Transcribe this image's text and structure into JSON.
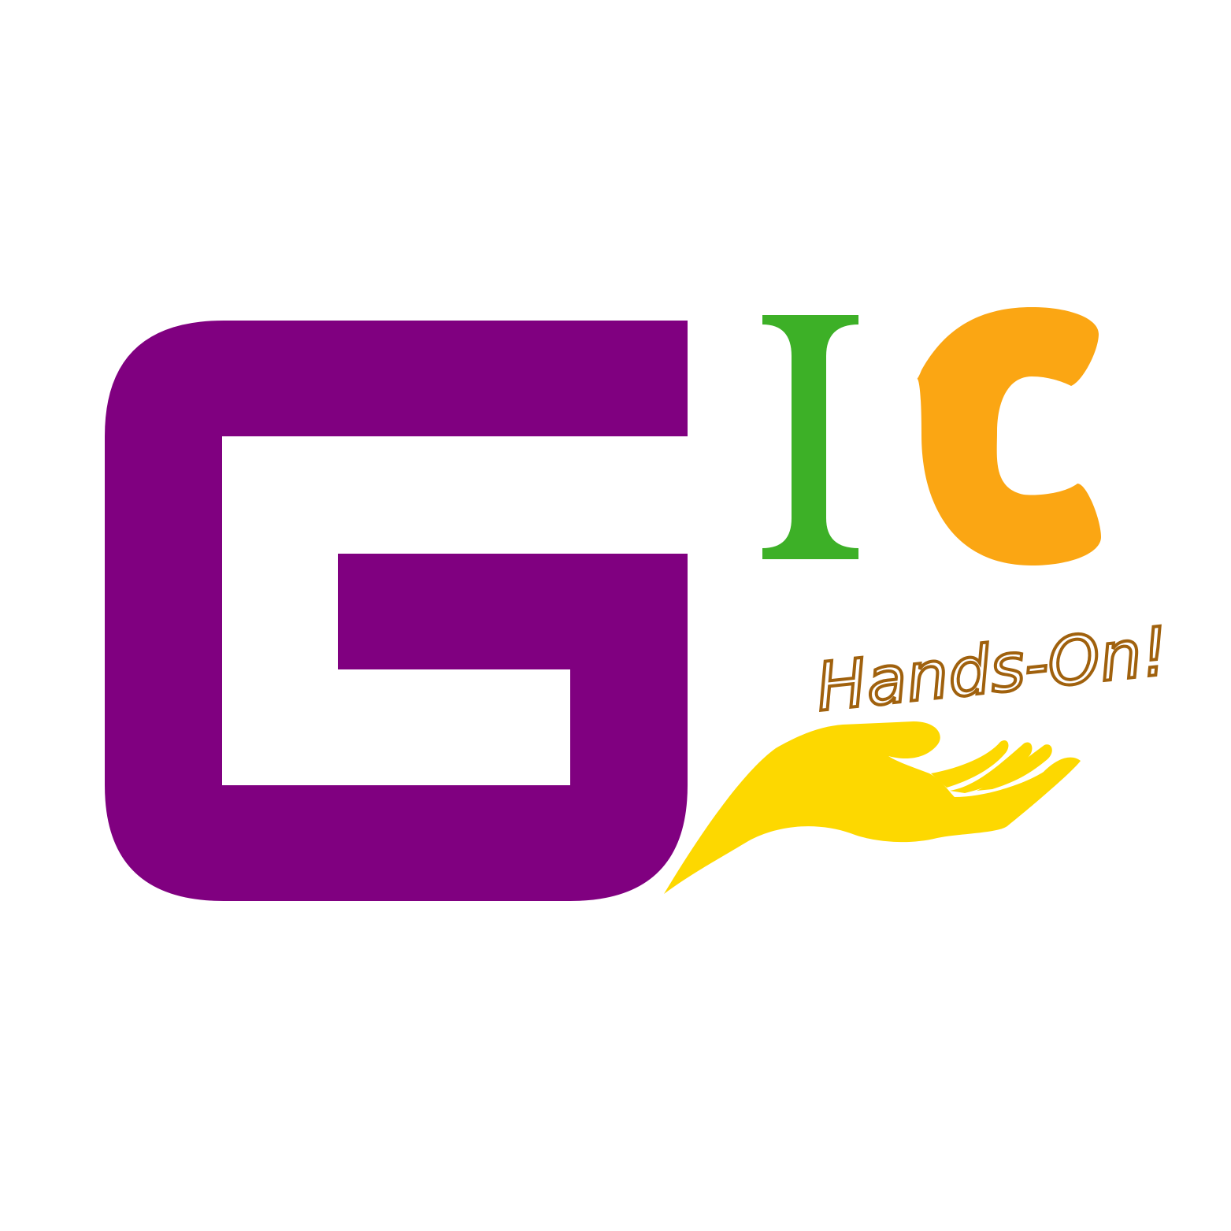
{
  "logo": {
    "letters": [
      "G",
      "I",
      "C"
    ],
    "tagline": "Hands-On!",
    "colors": {
      "background": "#ffffff",
      "g_letter": "#800080",
      "i_letter": "#3db027",
      "c_letter": "#fba613",
      "hand": "#fdd800",
      "tagline": "#a0610d"
    },
    "icons": [
      "open-hand-icon"
    ]
  }
}
